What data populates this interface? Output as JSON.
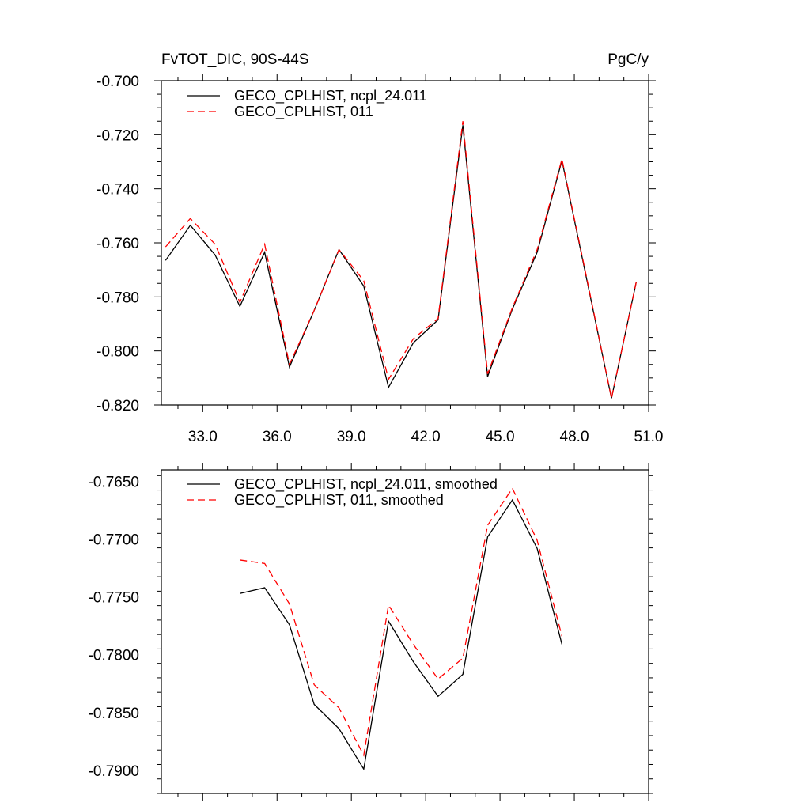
{
  "chart_data": [
    {
      "type": "line",
      "title": "FvTOT_DIC, 90S-44S",
      "units": "PgC/y",
      "xlim": [
        31.33,
        51.0
      ],
      "ylim": [
        -0.82,
        -0.7
      ],
      "x_ticks": [
        "33.0",
        "36.0",
        "39.0",
        "42.0",
        "45.0",
        "48.0",
        "51.0"
      ],
      "y_ticks": [
        "-0.700",
        "-0.720",
        "-0.740",
        "-0.760",
        "-0.780",
        "-0.800",
        "-0.820"
      ],
      "x": [
        31.5,
        32.5,
        33.5,
        34.5,
        35.5,
        36.5,
        37.5,
        38.5,
        39.5,
        40.5,
        41.5,
        42.5,
        43.5,
        44.5,
        45.5,
        46.5,
        47.5,
        48.5,
        49.5,
        50.5
      ],
      "series": [
        {
          "name": "GECO_CPLHIST, ncpl_24.011",
          "color": "#000000",
          "dash": "solid",
          "values": [
            -0.7665,
            -0.7535,
            -0.7645,
            -0.7835,
            -0.7635,
            -0.806,
            -0.785,
            -0.7625,
            -0.776,
            -0.8135,
            -0.797,
            -0.7885,
            -0.7165,
            -0.8095,
            -0.7845,
            -0.7635,
            -0.7295,
            -0.7735,
            -0.8175,
            -0.7745
          ]
        },
        {
          "name": "GECO_CPLHIST, 011",
          "color": "#ff0000",
          "dash": "dashed",
          "values": [
            -0.7615,
            -0.751,
            -0.7605,
            -0.782,
            -0.7605,
            -0.805,
            -0.785,
            -0.7625,
            -0.774,
            -0.8105,
            -0.7955,
            -0.788,
            -0.715,
            -0.8085,
            -0.784,
            -0.7625,
            -0.729,
            -0.773,
            -0.8175,
            -0.7745
          ]
        }
      ]
    },
    {
      "type": "line",
      "xlim": [
        31.33,
        51.0
      ],
      "ylim": [
        -0.792,
        -0.764
      ],
      "y_ticks": [
        "-0.7650",
        "-0.7700",
        "-0.7750",
        "-0.7800",
        "-0.7850",
        "-0.7900"
      ],
      "x": [
        34.5,
        35.5,
        36.5,
        37.5,
        38.5,
        39.5,
        40.5,
        41.5,
        42.5,
        43.5,
        44.5,
        45.5,
        46.5,
        47.5
      ],
      "series": [
        {
          "name": "GECO_CPLHIST, ncpl_24.011, smoothed",
          "color": "#000000",
          "dash": "solid",
          "values": [
            -0.7747,
            -0.7742,
            -0.7774,
            -0.7843,
            -0.7864,
            -0.7899,
            -0.7771,
            -0.7806,
            -0.7836,
            -0.7817,
            -0.7698,
            -0.7666,
            -0.7708,
            -0.7791
          ]
        },
        {
          "name": "GECO_CPLHIST, 011, smoothed",
          "color": "#ff0000",
          "dash": "dashed",
          "values": [
            -0.7718,
            -0.7721,
            -0.7756,
            -0.7826,
            -0.7846,
            -0.7887,
            -0.7757,
            -0.7791,
            -0.7821,
            -0.7803,
            -0.7688,
            -0.7656,
            -0.7701,
            -0.7784
          ]
        }
      ]
    }
  ]
}
